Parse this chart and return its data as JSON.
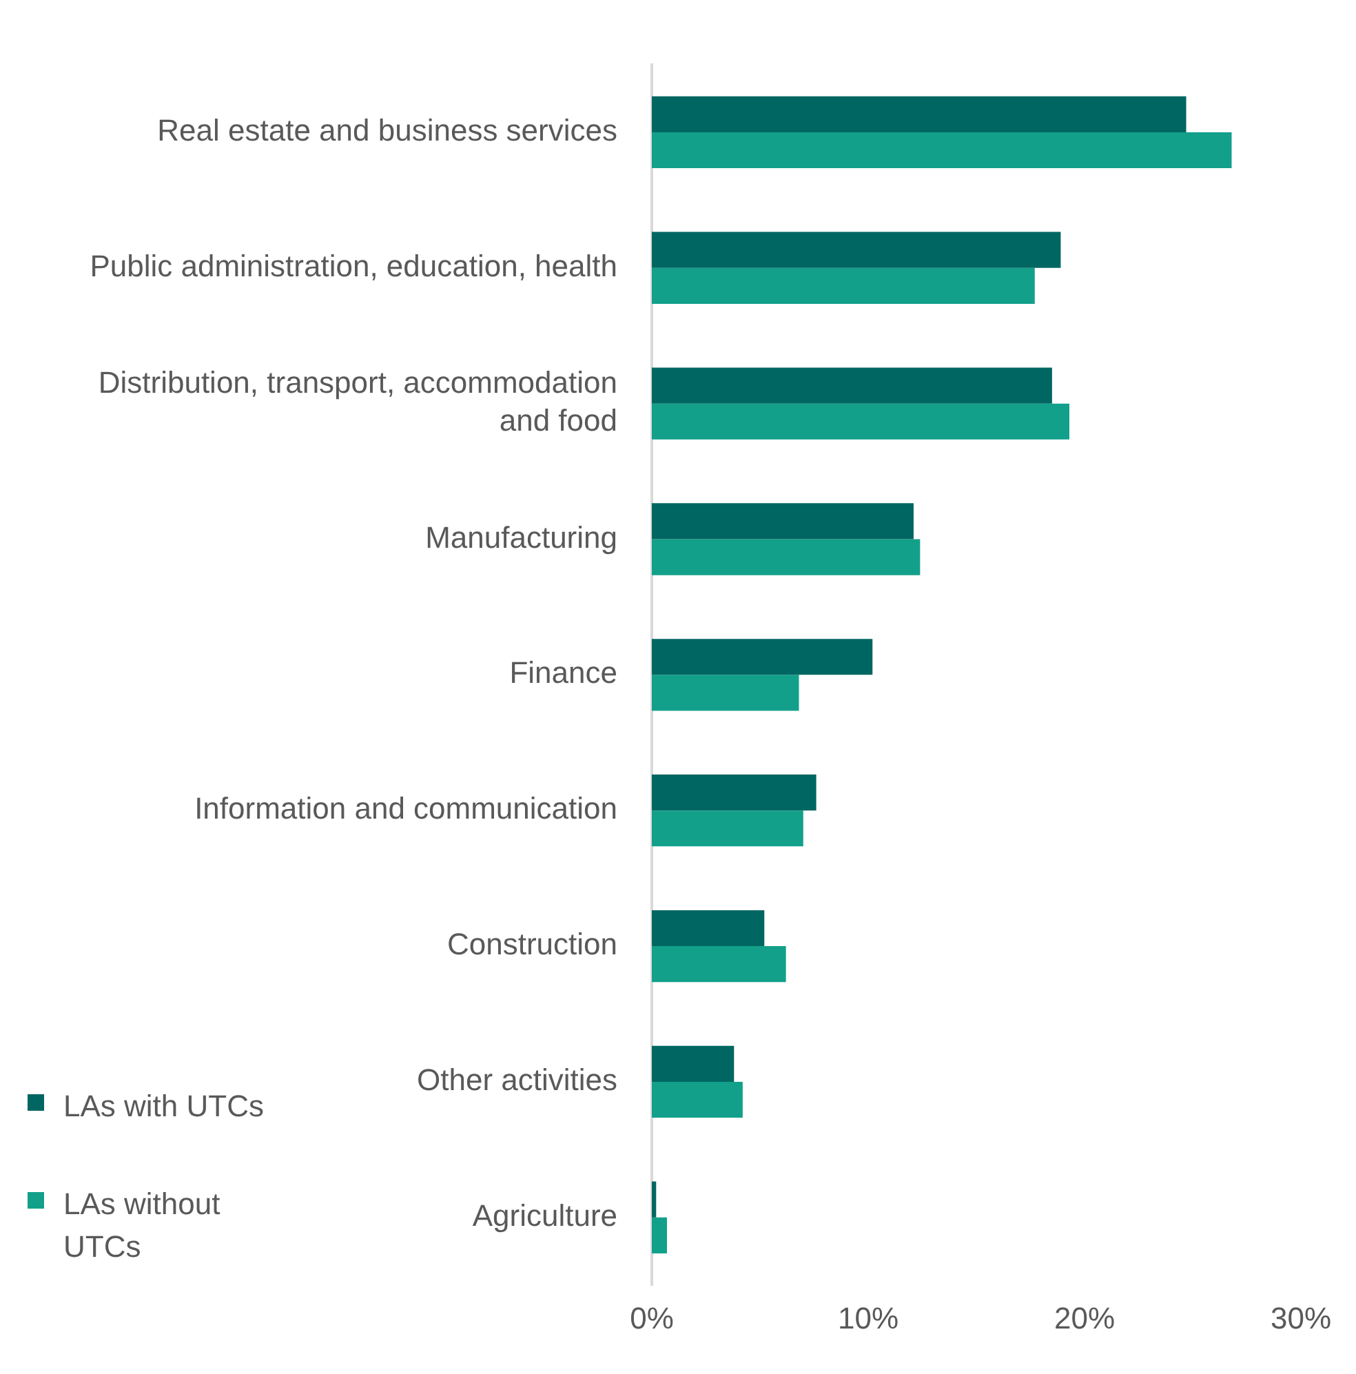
{
  "chart_data": {
    "type": "bar",
    "orientation": "horizontal",
    "categories": [
      "Real estate and business services",
      "Public administration, education, health",
      "Distribution, transport, accommodation and food",
      "Manufacturing",
      "Finance",
      "Information and communication",
      "Construction",
      "Other activities",
      "Agriculture"
    ],
    "series": [
      {
        "name": "LAs with UTCs",
        "color": "#006661",
        "values": [
          24.7,
          18.9,
          18.5,
          12.1,
          10.2,
          7.6,
          5.2,
          3.8,
          0.2
        ]
      },
      {
        "name": "LAs without UTCs",
        "color": "#12a08a",
        "values": [
          26.8,
          17.7,
          19.3,
          12.4,
          6.8,
          7.0,
          6.2,
          4.2,
          0.7
        ]
      }
    ],
    "xlim": [
      0,
      30
    ],
    "xticks": [
      {
        "value": 0,
        "label": "0%"
      },
      {
        "value": 10,
        "label": "10%"
      },
      {
        "value": 20,
        "label": "20%"
      },
      {
        "value": 30,
        "label": "30%"
      }
    ],
    "grid": false,
    "legend": "bottom left"
  }
}
